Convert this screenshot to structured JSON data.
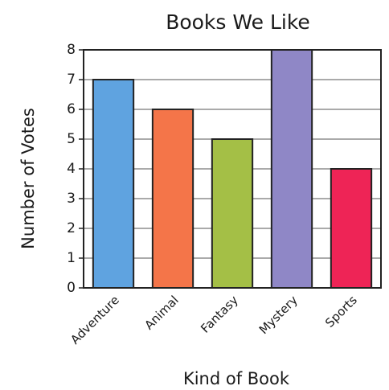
{
  "chart_data": {
    "type": "bar",
    "title": "Books We Like",
    "xlabel": "Kind of Book",
    "ylabel": "Number of Votes",
    "categories": [
      "Adventure",
      "Animal",
      "Fantasy",
      "Mystery",
      "Sports"
    ],
    "values": [
      7,
      6,
      5,
      8,
      4
    ],
    "colors": [
      "#5fa3e0",
      "#f47549",
      "#a4bf46",
      "#8f87c6",
      "#ee2456"
    ],
    "ylim": [
      0,
      8
    ],
    "yticks": [
      0,
      1,
      2,
      3,
      4,
      5,
      6,
      7,
      8
    ],
    "grid": true,
    "legend": "none"
  }
}
